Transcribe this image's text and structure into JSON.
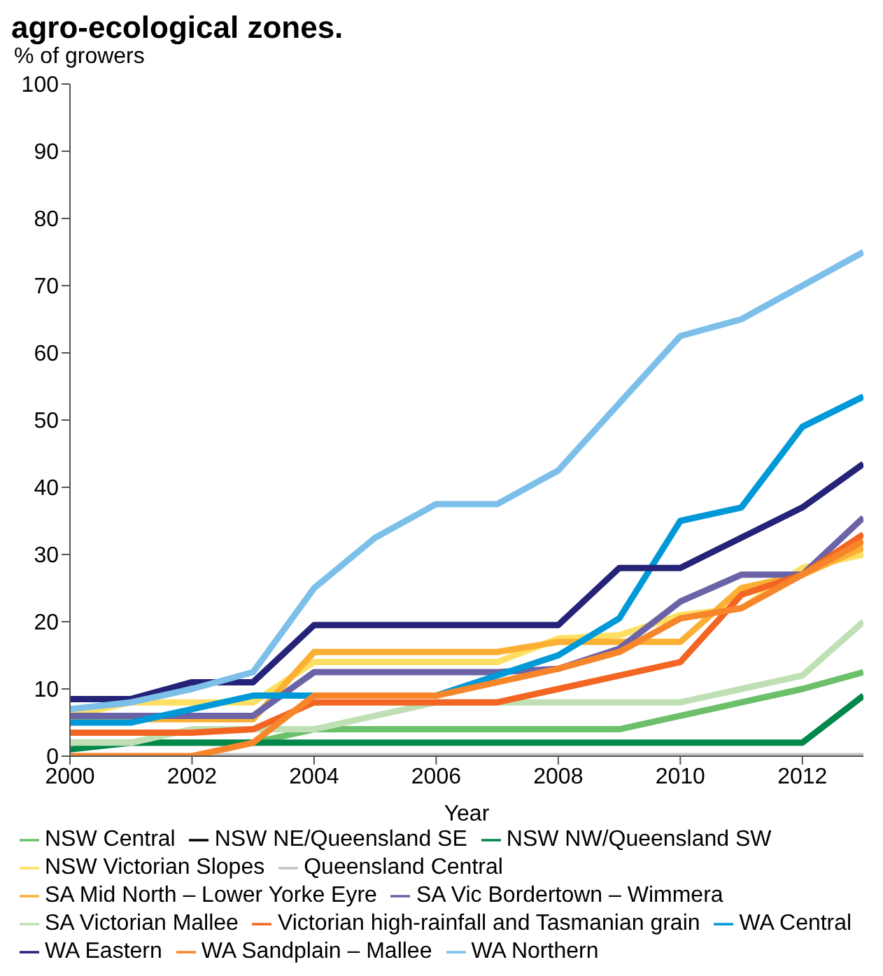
{
  "chart_data": {
    "type": "line",
    "title": "agro-ecological zones.",
    "ylabel": "% of growers",
    "xlabel": "Year",
    "x": [
      2000,
      2001,
      2002,
      2003,
      2004,
      2005,
      2006,
      2007,
      2008,
      2009,
      2010,
      2011,
      2012,
      2013
    ],
    "xlim": [
      2000,
      2013
    ],
    "xticks": [
      2000,
      2002,
      2004,
      2006,
      2008,
      2010,
      2012
    ],
    "ylim": [
      0,
      100
    ],
    "yticks": [
      0,
      10,
      20,
      30,
      40,
      50,
      60,
      70,
      80,
      90,
      100
    ],
    "grid": false,
    "legend": "bottom",
    "marker": "none",
    "line_style": "solid",
    "series": [
      {
        "name": "NSW Central",
        "color": "#6cc06a",
        "values": [
          2,
          2,
          2,
          2,
          4,
          4,
          4,
          4,
          4,
          4,
          6,
          8,
          10,
          12.5
        ]
      },
      {
        "name": "NSW NE/Queensland SE",
        "color": "#000000",
        "values": [
          null,
          null,
          null,
          null,
          null,
          null,
          null,
          null,
          null,
          null,
          null,
          null,
          null,
          null
        ]
      },
      {
        "name": "NSW NW/Queensland SW",
        "color": "#00874a",
        "values": [
          1,
          2,
          2,
          2,
          2,
          2,
          2,
          2,
          2,
          2,
          2,
          2,
          2,
          9
        ]
      },
      {
        "name": "NSW Victorian Slopes",
        "color": "#fde063",
        "values": [
          6,
          8,
          8,
          8,
          14,
          14,
          14,
          14,
          17.5,
          18,
          21,
          22,
          28,
          30
        ]
      },
      {
        "name": "Queensland Central",
        "color": "#c4c4c4",
        "values": [
          0,
          0,
          0,
          0,
          0,
          0,
          0,
          0,
          0,
          0,
          0,
          0,
          0,
          0
        ]
      },
      {
        "name": "SA Mid North – Lower Yorke Eyre",
        "color": "#fbb034",
        "values": [
          5,
          5.5,
          5.5,
          5.5,
          15.5,
          15.5,
          15.5,
          15.5,
          17,
          17,
          17,
          25,
          27,
          31
        ]
      },
      {
        "name": "SA Vic Bordertown – Wimmera",
        "color": "#6a63a5",
        "values": [
          6,
          6,
          6,
          6,
          12.5,
          12.5,
          12.5,
          12.5,
          13,
          16,
          23,
          27,
          27,
          35.5
        ]
      },
      {
        "name": "SA Victorian Mallee",
        "color": "#bfe0b4",
        "values": [
          2,
          2,
          4,
          4,
          4,
          6,
          8,
          8,
          8,
          8,
          8,
          10,
          12,
          20
        ]
      },
      {
        "name": "Victorian high-rainfall and Tasmanian grain",
        "color": "#f26522",
        "values": [
          3.5,
          3.5,
          3.5,
          4,
          8,
          8,
          8,
          8,
          10,
          12,
          14,
          24,
          27,
          33
        ]
      },
      {
        "name": "WA Central",
        "color": "#0099d8",
        "values": [
          5,
          5,
          7,
          9,
          9,
          9,
          9,
          12,
          15,
          20.5,
          35,
          37,
          49,
          53.5
        ]
      },
      {
        "name": "WA Eastern",
        "color": "#252378",
        "values": [
          8.5,
          8.5,
          11,
          11,
          19.5,
          19.5,
          19.5,
          19.5,
          19.5,
          28,
          28,
          32.5,
          37,
          43.5
        ]
      },
      {
        "name": "WA Sandplain – Mallee",
        "color": "#f7862b",
        "values": [
          0,
          0,
          0,
          2,
          9,
          9,
          9,
          11,
          13,
          15.5,
          20.5,
          22,
          27,
          32
        ]
      },
      {
        "name": "WA Northern",
        "color": "#7cc0ea",
        "values": [
          7,
          8,
          10,
          12.5,
          25,
          32.5,
          37.5,
          37.5,
          42.5,
          52.5,
          62.5,
          65,
          70,
          75
        ]
      }
    ]
  }
}
